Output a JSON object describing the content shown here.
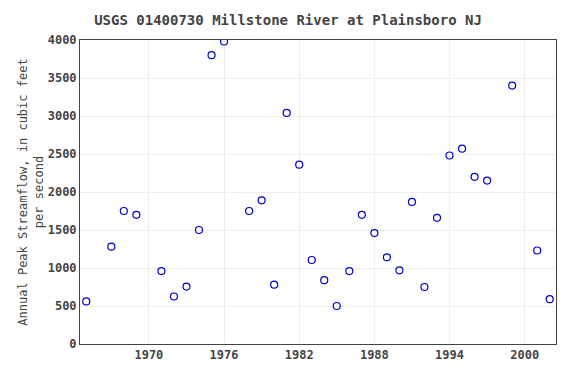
{
  "chart_data": {
    "type": "scatter",
    "title": "USGS 01400730 Millstone River at Plainsboro NJ",
    "ylabel": "Annual Peak Streamflow, in cubic feet\nper second",
    "x": [
      1965,
      1967,
      1968,
      1969,
      1971,
      1972,
      1973,
      1974,
      1975,
      1976,
      1978,
      1979,
      1980,
      1981,
      1982,
      1983,
      1984,
      1985,
      1986,
      1987,
      1988,
      1989,
      1990,
      1991,
      1992,
      1993,
      1994,
      1995,
      1996,
      1997,
      1999,
      2001,
      2002
    ],
    "values": [
      560,
      1280,
      1750,
      1700,
      960,
      625,
      755,
      1500,
      3800,
      3980,
      1750,
      1890,
      780,
      3040,
      2360,
      1105,
      840,
      500,
      960,
      1700,
      1460,
      1140,
      970,
      1870,
      750,
      1660,
      2480,
      2570,
      2200,
      2150,
      3400,
      1230,
      590
    ],
    "color": "#0000cc",
    "marker": "circle-open",
    "xlim": [
      1964.5,
      2002.5
    ],
    "ylim": [
      0,
      4000
    ],
    "xticks": [
      1970,
      1976,
      1982,
      1988,
      1994,
      2000
    ],
    "yticks": [
      0,
      500,
      1000,
      1500,
      2000,
      2500,
      3000,
      3500,
      4000
    ],
    "grid": true
  }
}
